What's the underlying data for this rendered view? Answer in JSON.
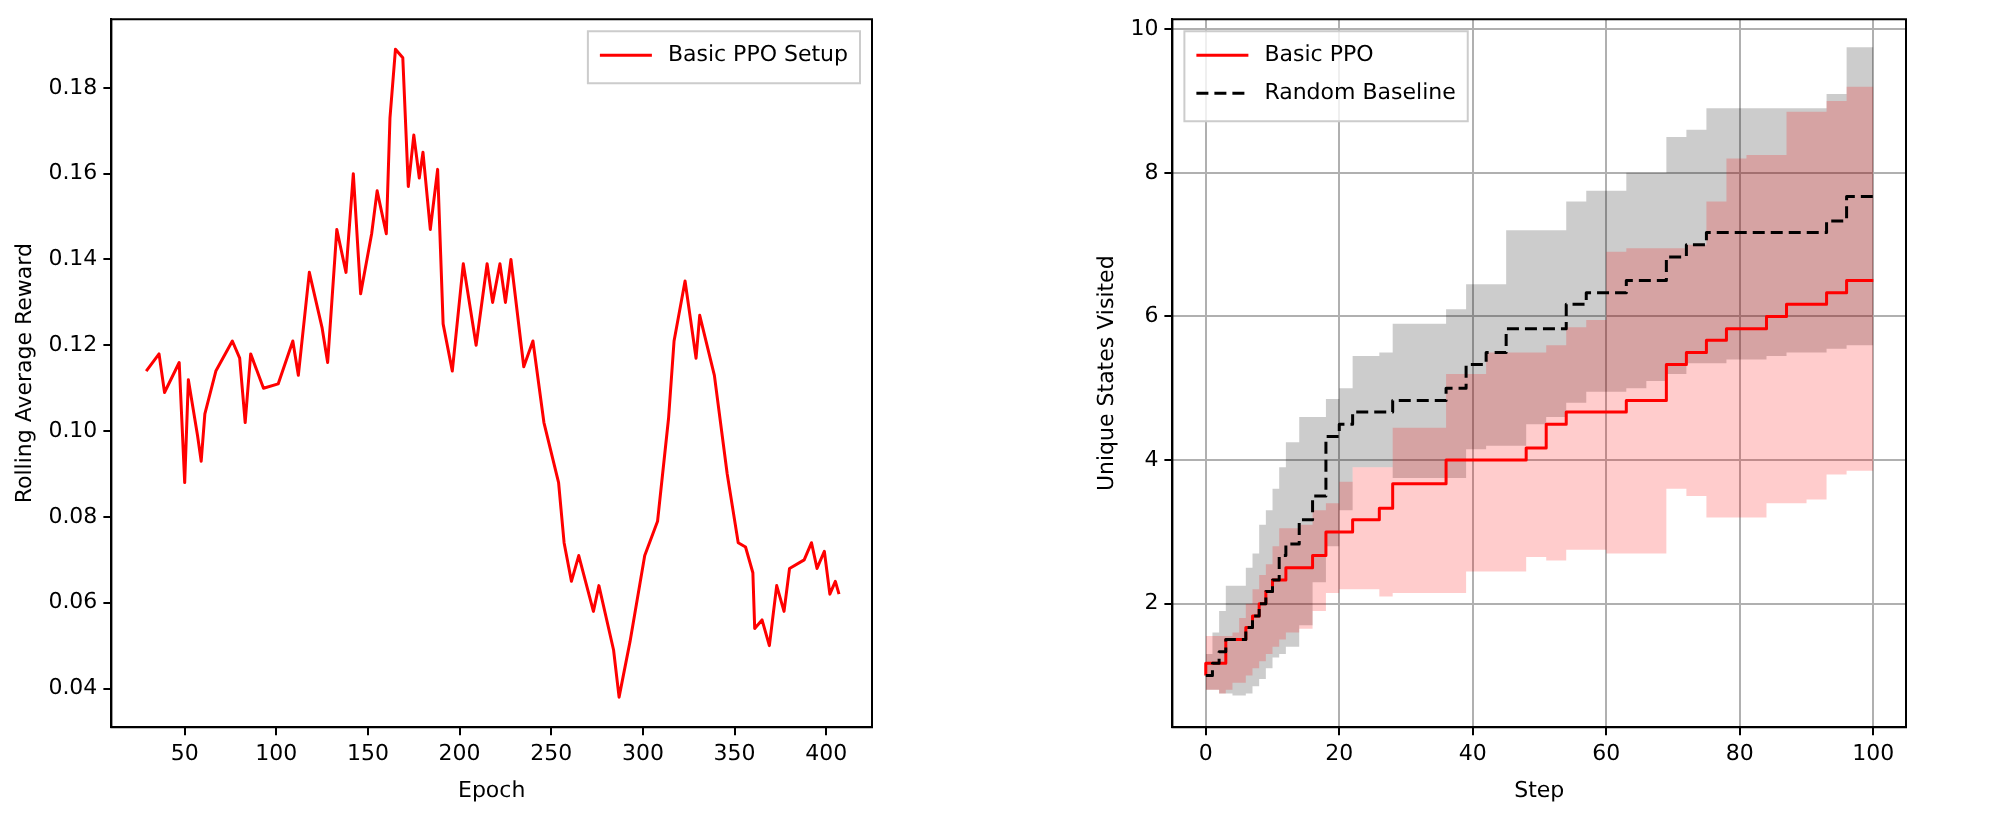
{
  "chart_data": [
    {
      "type": "line",
      "xlabel": "Epoch",
      "ylabel": "Rolling Average Reward",
      "legend": "top right",
      "grid": false,
      "xlim": [
        10,
        425
      ],
      "xticks": [
        50,
        100,
        150,
        200,
        250,
        300,
        350,
        400
      ],
      "ylim": [
        0.031,
        0.196
      ],
      "yticks": [
        {
          "value": 0.04,
          "label": "0.04"
        },
        {
          "value": 0.06,
          "label": "0.06"
        },
        {
          "value": 0.08,
          "label": "0.08"
        },
        {
          "value": 0.1,
          "label": "0.10"
        },
        {
          "value": 0.12,
          "label": "0.12"
        },
        {
          "value": 0.14,
          "label": "0.14"
        },
        {
          "value": 0.16,
          "label": "0.16"
        },
        {
          "value": 0.18,
          "label": "0.18"
        }
      ],
      "x": [
        29,
        36,
        39,
        47,
        50,
        52,
        57,
        59,
        61,
        67,
        76,
        80,
        83,
        86,
        93,
        101,
        109,
        112,
        118,
        125,
        128,
        133,
        138,
        142,
        146,
        152,
        155,
        160,
        162,
        165,
        169,
        172,
        175,
        178,
        180,
        184,
        188,
        191,
        196,
        202,
        209,
        215,
        218,
        222,
        225,
        228,
        235,
        240,
        246,
        254,
        257,
        261,
        265,
        273,
        276,
        284,
        287,
        293,
        301,
        308,
        314,
        317,
        323,
        326,
        329,
        331,
        339,
        346,
        352,
        356,
        360,
        361,
        365,
        369,
        373,
        377,
        380,
        388,
        392,
        395,
        399,
        402,
        405,
        407
      ],
      "series": [
        {
          "name": "Basic PPO Setup",
          "color": "#ff0000",
          "values": [
            0.114,
            0.118,
            0.109,
            0.116,
            0.088,
            0.112,
            0.099,
            0.093,
            0.104,
            0.114,
            0.121,
            0.117,
            0.102,
            0.118,
            0.11,
            0.111,
            0.121,
            0.113,
            0.137,
            0.124,
            0.116,
            0.147,
            0.137,
            0.16,
            0.132,
            0.146,
            0.156,
            0.146,
            0.173,
            0.189,
            0.187,
            0.157,
            0.169,
            0.159,
            0.165,
            0.147,
            0.161,
            0.125,
            0.114,
            0.139,
            0.12,
            0.139,
            0.13,
            0.139,
            0.13,
            0.14,
            0.115,
            0.121,
            0.102,
            0.088,
            0.074,
            0.065,
            0.071,
            0.058,
            0.064,
            0.049,
            0.038,
            0.051,
            0.071,
            0.079,
            0.103,
            0.121,
            0.135,
            0.126,
            0.117,
            0.127,
            0.113,
            0.09,
            0.074,
            0.073,
            0.067,
            0.054,
            0.056,
            0.05,
            0.064,
            0.058,
            0.068,
            0.07,
            0.074,
            0.068,
            0.072,
            0.062,
            0.065,
            0.062
          ]
        }
      ]
    },
    {
      "type": "step",
      "xlabel": "Step",
      "ylabel": "Unique States Visited",
      "legend": "top left",
      "grid": true,
      "xlim": [
        -5,
        104.9
      ],
      "xticks": [
        0,
        20,
        40,
        60,
        80,
        100
      ],
      "ylim": [
        0.28,
        10.14
      ],
      "yticks": [
        2,
        4,
        6,
        8,
        10
      ],
      "x": [
        0,
        1,
        2,
        3,
        4,
        5,
        6,
        7,
        8,
        9,
        10,
        11,
        12,
        14,
        16,
        18,
        20,
        22,
        24,
        26,
        28,
        30,
        33,
        36,
        39,
        42,
        45,
        48,
        51,
        54,
        57,
        60,
        63,
        66,
        69,
        72,
        75,
        78,
        81,
        84,
        87,
        90,
        93,
        96,
        99,
        100
      ],
      "series": [
        {
          "name": "Basic PPO",
          "color": "#ff0000",
          "line_style": "solid",
          "values": [
            1.0,
            1.17,
            1.17,
            1.17,
            1.5,
            1.5,
            1.5,
            1.67,
            1.83,
            2.0,
            2.17,
            2.33,
            2.33,
            2.5,
            2.5,
            2.67,
            3.0,
            3.0,
            3.17,
            3.17,
            3.33,
            3.67,
            3.67,
            3.67,
            4.0,
            4.0,
            4.0,
            4.0,
            4.17,
            4.5,
            4.67,
            4.67,
            4.67,
            4.83,
            4.83,
            5.33,
            5.5,
            5.67,
            5.83,
            5.83,
            6.0,
            6.17,
            6.17,
            6.33,
            6.5,
            6.5
          ],
          "lower": [
            0.8,
            0.8,
            0.8,
            0.75,
            0.8,
            0.9,
            0.9,
            1.0,
            1.1,
            1.2,
            1.3,
            1.4,
            1.5,
            1.6,
            1.65,
            1.9,
            2.15,
            2.2,
            2.2,
            2.2,
            2.1,
            2.15,
            2.15,
            2.15,
            2.15,
            2.45,
            2.45,
            2.45,
            2.65,
            2.6,
            2.75,
            2.75,
            2.7,
            2.7,
            2.7,
            3.6,
            3.5,
            3.2,
            3.2,
            3.2,
            3.4,
            3.4,
            3.45,
            3.8,
            3.85,
            3.85
          ],
          "upper": [
            1.55,
            1.55,
            1.55,
            1.55,
            1.55,
            1.6,
            1.8,
            2.0,
            2.2,
            2.4,
            2.55,
            2.8,
            3.05,
            3.05,
            3.1,
            3.3,
            3.4,
            3.7,
            3.9,
            3.9,
            3.9,
            4.45,
            4.45,
            4.45,
            5.2,
            5.2,
            5.5,
            5.5,
            5.5,
            5.6,
            5.85,
            5.95,
            6.9,
            6.95,
            6.95,
            6.95,
            7.0,
            7.6,
            8.2,
            8.25,
            8.25,
            8.85,
            8.85,
            9.0,
            9.2,
            9.2
          ]
        },
        {
          "name": "Random Baseline",
          "color": "#000000",
          "line_style": "dashed",
          "values": [
            1.0,
            1.0,
            1.17,
            1.33,
            1.5,
            1.5,
            1.5,
            1.67,
            1.83,
            2.0,
            2.17,
            2.33,
            2.67,
            2.83,
            3.17,
            3.5,
            4.33,
            4.5,
            4.67,
            4.67,
            4.67,
            4.83,
            4.83,
            4.83,
            5.0,
            5.33,
            5.5,
            5.83,
            5.83,
            5.83,
            6.17,
            6.33,
            6.33,
            6.5,
            6.5,
            6.83,
            7.0,
            7.17,
            7.17,
            7.17,
            7.17,
            7.17,
            7.17,
            7.33,
            7.67,
            7.67
          ],
          "lower": [
            0.8,
            0.8,
            0.8,
            0.75,
            0.75,
            0.72,
            0.72,
            0.75,
            0.85,
            0.95,
            1.1,
            1.25,
            1.3,
            1.4,
            1.7,
            2.3,
            2.8,
            3.3,
            3.9,
            3.9,
            3.9,
            3.75,
            3.75,
            3.75,
            3.75,
            4.15,
            4.2,
            4.2,
            4.5,
            4.6,
            4.8,
            4.95,
            4.95,
            5.0,
            5.1,
            5.2,
            5.35,
            5.35,
            5.4,
            5.4,
            5.45,
            5.5,
            5.5,
            5.55,
            5.6,
            5.6
          ],
          "upper": [
            1.2,
            1.3,
            1.6,
            1.9,
            2.25,
            2.25,
            2.25,
            2.5,
            2.7,
            3.1,
            3.3,
            3.6,
            3.9,
            4.25,
            4.6,
            4.6,
            4.85,
            5.0,
            5.45,
            5.45,
            5.5,
            5.9,
            5.9,
            5.9,
            6.1,
            6.45,
            6.45,
            7.2,
            7.2,
            7.2,
            7.6,
            7.75,
            7.75,
            8.0,
            8.0,
            8.5,
            8.6,
            8.9,
            8.9,
            8.9,
            8.9,
            8.9,
            8.9,
            9.1,
            9.75,
            9.75
          ]
        }
      ]
    }
  ]
}
